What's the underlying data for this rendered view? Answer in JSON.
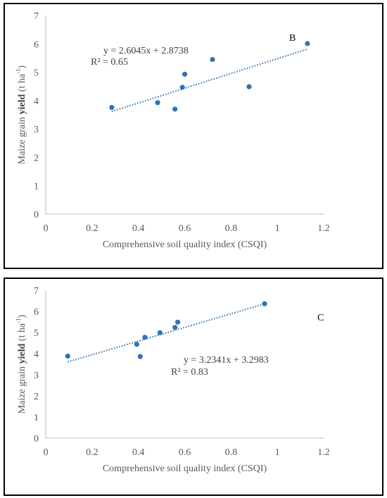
{
  "chart_data": [
    {
      "type": "scatter",
      "panel_label": "B",
      "xlabel": "Comprehensive soil quality index (CSQI)",
      "ylabel_prefix": "Maize grain ",
      "ylabel_bold": "yield",
      "ylabel_suffix": " (t ha",
      "ylabel_sup": "-1",
      "ylabel_close": ")",
      "xlim": [
        0,
        1.2
      ],
      "ylim": [
        0,
        7
      ],
      "xticks": [
        0,
        0.2,
        0.4,
        0.6,
        0.8,
        1,
        1.2
      ],
      "yticks": [
        0,
        1,
        2,
        3,
        4,
        5,
        6,
        7
      ],
      "xtick_labels": [
        "0",
        "0.2",
        "0.4",
        "0.6",
        "0.8",
        "1",
        "1.2"
      ],
      "ytick_labels": [
        "0",
        "1",
        "2",
        "3",
        "4",
        "5",
        "6",
        "7"
      ],
      "grid": false,
      "point_color": "#2E75B6",
      "trend_color": "#2E75B6",
      "x": [
        0.285,
        0.483,
        0.558,
        0.59,
        0.6,
        0.72,
        0.878,
        1.13
      ],
      "y": [
        3.76,
        3.93,
        3.7,
        4.47,
        4.93,
        5.45,
        4.49,
        6.01
      ],
      "trendline": {
        "slope": 2.6045,
        "intercept": 2.8738,
        "x_range": [
          0.285,
          1.13
        ]
      },
      "equation": "y = 2.6045x + 2.8738",
      "r_squared": "R² = 0.65"
    },
    {
      "type": "scatter",
      "panel_label": "C",
      "xlabel": "Comprehensive soil quality index (CSQI)",
      "ylabel_prefix": "Maize grain ",
      "ylabel_bold": "yield",
      "ylabel_suffix": " (t ha",
      "ylabel_sup": "-1",
      "ylabel_close": ")",
      "xlim": [
        0,
        1.2
      ],
      "ylim": [
        0,
        7
      ],
      "xticks": [
        0,
        0.2,
        0.4,
        0.6,
        0.8,
        1,
        1.2
      ],
      "yticks": [
        0,
        1,
        2,
        3,
        4,
        5,
        6,
        7
      ],
      "xtick_labels": [
        "0",
        "0.2",
        "0.4",
        "0.6",
        "0.8",
        "1",
        "1.2"
      ],
      "ytick_labels": [
        "0",
        "1",
        "2",
        "3",
        "4",
        "5",
        "6",
        "7"
      ],
      "grid": false,
      "point_color": "#2E75B6",
      "trend_color": "#2E75B6",
      "x": [
        0.095,
        0.393,
        0.408,
        0.428,
        0.493,
        0.558,
        0.57,
        0.945
      ],
      "y": [
        3.88,
        4.44,
        3.86,
        4.77,
        4.99,
        5.24,
        5.49,
        6.36
      ],
      "trendline": {
        "slope": 3.2341,
        "intercept": 3.2983,
        "x_range": [
          0.095,
          0.945
        ]
      },
      "equation": "y = 3.2341x + 3.2983",
      "r_squared": "R² = 0.83"
    }
  ]
}
